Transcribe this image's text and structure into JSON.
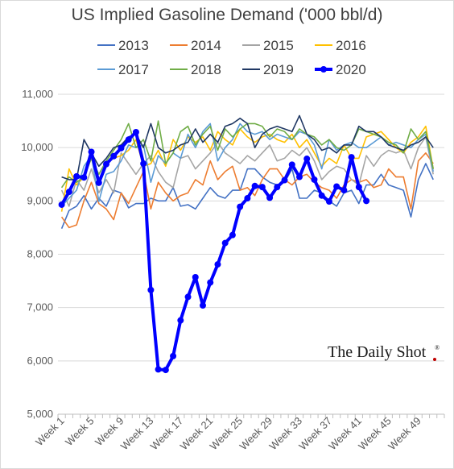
{
  "chart_data": {
    "type": "line",
    "title": "US Implied Gasoline Demand ('000 bbl/d)",
    "xlabel": "",
    "ylabel": "",
    "ylim": [
      5000,
      11000
    ],
    "y_ticks": [
      "5,000",
      "6,000",
      "7,000",
      "8,000",
      "9,000",
      "10,000",
      "11,000"
    ],
    "y_tick_values": [
      5000,
      6000,
      7000,
      8000,
      9000,
      10000,
      11000
    ],
    "x_tick_labels": [
      "Week 1",
      "Week 5",
      "Week 9",
      "Week 13",
      "Week 17",
      "Week 21",
      "Week 25",
      "Week 29",
      "Week 33",
      "Week 37",
      "Week 41",
      "Week 45",
      "Week 49"
    ],
    "x_tick_weeks": [
      1,
      5,
      9,
      13,
      17,
      21,
      25,
      29,
      33,
      37,
      41,
      45,
      49
    ],
    "grid": "horizontal",
    "legend": "top",
    "series": [
      {
        "name": "2013",
        "color": "#4472c4",
        "bold": false,
        "values": [
          8480,
          8820,
          8900,
          9100,
          8850,
          9050,
          8900,
          9200,
          9150,
          8870,
          8950,
          8950,
          9050,
          9000,
          9000,
          9250,
          8900,
          8930,
          8850,
          9050,
          9250,
          9100,
          9050,
          9200,
          9200,
          9600,
          9600,
          9450,
          9350,
          9300,
          9350,
          9600,
          9050,
          9050,
          9200,
          9150,
          9000,
          8900,
          9150,
          9200,
          8950,
          9300,
          9300,
          9500,
          9300,
          9250,
          9200,
          8700,
          9400,
          9700,
          9400
        ]
      },
      {
        "name": "2014",
        "color": "#ed7d31",
        "bold": false,
        "values": [
          8700,
          8500,
          8550,
          9000,
          9350,
          8950,
          8850,
          8650,
          9150,
          8950,
          9250,
          9550,
          8850,
          9350,
          9150,
          9000,
          9100,
          9150,
          9400,
          9300,
          9750,
          9400,
          9550,
          9650,
          9200,
          9250,
          9100,
          9400,
          9600,
          9600,
          9400,
          9300,
          9450,
          9500,
          9350,
          9250,
          9200,
          9050,
          9300,
          9400,
          9350,
          9400,
          9250,
          9300,
          9600,
          9450,
          9450,
          8850,
          9750,
          9900,
          9700
        ]
      },
      {
        "name": "2015",
        "color": "#a5a5a5",
        "bold": false,
        "values": [
          9200,
          8900,
          9400,
          9200,
          9600,
          9150,
          9400,
          9150,
          9900,
          9700,
          9500,
          9700,
          9850,
          9550,
          9350,
          9250,
          9800,
          9850,
          9600,
          9750,
          9900,
          10100,
          9900,
          9800,
          9700,
          9850,
          9750,
          9900,
          10050,
          9750,
          9800,
          9950,
          9850,
          10000,
          9750,
          9400,
          9550,
          9650,
          9600,
          9400,
          9300,
          9850,
          9650,
          9850,
          9950,
          9900,
          9950,
          9600,
          10000,
          10200,
          9500
        ]
      },
      {
        "name": "2016",
        "color": "#ffc000",
        "bold": false,
        "values": [
          8800,
          9600,
          9300,
          9450,
          9800,
          9350,
          9700,
          9800,
          9850,
          9950,
          10150,
          9650,
          9700,
          9950,
          9650,
          10150,
          9950,
          10200,
          10100,
          10200,
          9950,
          10300,
          10150,
          10050,
          10350,
          10200,
          10100,
          10200,
          10250,
          10150,
          10100,
          10250,
          10000,
          10150,
          9900,
          9650,
          9800,
          9700,
          10050,
          9800,
          9800,
          10200,
          10250,
          10300,
          10150,
          10000,
          9900,
          10100,
          10200,
          10400,
          9600
        ]
      },
      {
        "name": "2017",
        "color": "#5b9bd5",
        "bold": false,
        "values": [
          8900,
          9050,
          9200,
          9650,
          9850,
          8990,
          9500,
          9550,
          9750,
          10050,
          10000,
          10050,
          9350,
          9850,
          9700,
          9900,
          9800,
          10250,
          10000,
          10300,
          10450,
          9750,
          10000,
          10150,
          10450,
          10300,
          10250,
          10300,
          10150,
          10250,
          10200,
          10150,
          10300,
          10250,
          10050,
          9600,
          10150,
          9950,
          10050,
          10100,
          10000,
          10000,
          10100,
          10200,
          10050,
          10100,
          10050,
          10000,
          10150,
          10250,
          9550
        ]
      },
      {
        "name": "2018",
        "color": "#70ad47",
        "bold": false,
        "values": [
          9250,
          9450,
          9350,
          9450,
          9800,
          9500,
          9750,
          9950,
          10150,
          10450,
          10000,
          10150,
          9750,
          10500,
          9700,
          9900,
          10300,
          10400,
          10050,
          10250,
          10400,
          9950,
          10350,
          10200,
          10350,
          10450,
          10450,
          10400,
          10200,
          10350,
          10300,
          10150,
          10350,
          10250,
          10200,
          10050,
          10150,
          10000,
          9950,
          10050,
          10350,
          10300,
          10250,
          10200,
          10100,
          10050,
          9900,
          10350,
          10150,
          10300,
          9600
        ]
      },
      {
        "name": "2019",
        "color": "#203864",
        "bold": false,
        "values": [
          9450,
          9400,
          9400,
          10150,
          9900,
          9650,
          9800,
          10000,
          10050,
          10200,
          10250,
          10000,
          10450,
          10000,
          9900,
          9950,
          10050,
          10100,
          10350,
          10100,
          10250,
          10100,
          10400,
          10450,
          10550,
          10450,
          10000,
          10250,
          10350,
          10400,
          10350,
          10300,
          10600,
          10250,
          10150,
          9950,
          10000,
          9900,
          10050,
          10050,
          10400,
          10300,
          10300,
          10200,
          10050,
          10000,
          9950,
          10050,
          10100,
          10200,
          10000
        ]
      },
      {
        "name": "2020",
        "color": "#0000ff",
        "bold": true,
        "values": [
          8930,
          9170,
          9460,
          9440,
          9920,
          9340,
          9690,
          9840,
          9990,
          10150,
          10290,
          9700,
          7330,
          5840,
          5830,
          6090,
          6760,
          7200,
          7570,
          7040,
          7470,
          7810,
          8210,
          8360,
          8890,
          9050,
          9280,
          9260,
          9060,
          9260,
          9390,
          9680,
          9450,
          9790,
          9400,
          9100,
          8990,
          9270,
          9200,
          9820,
          9260,
          9000
        ]
      }
    ]
  },
  "watermark": {
    "text": "The Daily Shot",
    "mark": "®",
    "dot_color": "#c00000"
  }
}
